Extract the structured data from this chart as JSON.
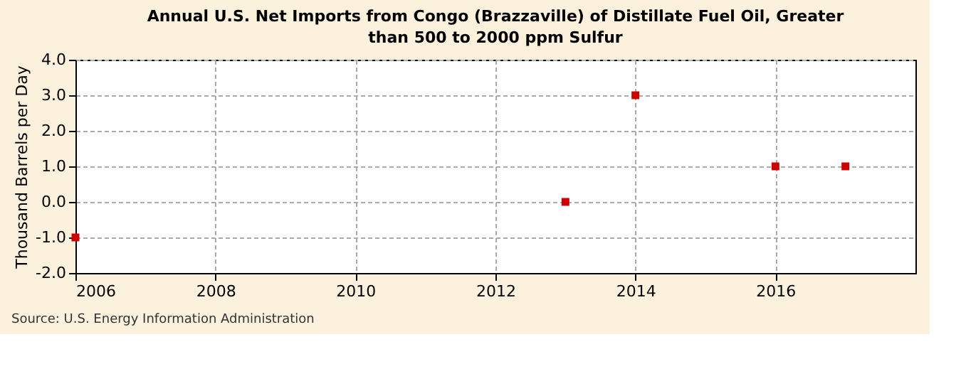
{
  "chart_data": {
    "type": "scatter",
    "title": "Annual U.S. Net Imports from Congo (Brazzaville) of Distillate Fuel Oil, Greater than 500 to 2000 ppm Sulfur",
    "ylabel": "Thousand Barrels per Day",
    "annotations": [
      "Source: U.S. Energy Information Administration"
    ],
    "x": [
      2006,
      2013,
      2014,
      2016,
      2017
    ],
    "series": [
      {
        "color": "#cc0000",
        "values": [
          -1.0,
          0.0,
          3.0,
          1.0,
          1.0
        ]
      }
    ],
    "xlim": [
      2006,
      2018
    ],
    "xticks": [
      2006,
      2008,
      2010,
      2012,
      2014,
      2016
    ],
    "ylim": [
      -2.0,
      4.0
    ],
    "yticks": [
      {
        "value": -2,
        "label": "-2.0"
      },
      {
        "value": -1,
        "label": "-1.0"
      },
      {
        "value": 0,
        "label": "0.0"
      },
      {
        "value": 1,
        "label": "1.0"
      },
      {
        "value": 2,
        "label": "2.0"
      },
      {
        "value": 3,
        "label": "3.0"
      },
      {
        "value": 4,
        "label": "4.0"
      }
    ],
    "grid": true,
    "marker": "square"
  }
}
